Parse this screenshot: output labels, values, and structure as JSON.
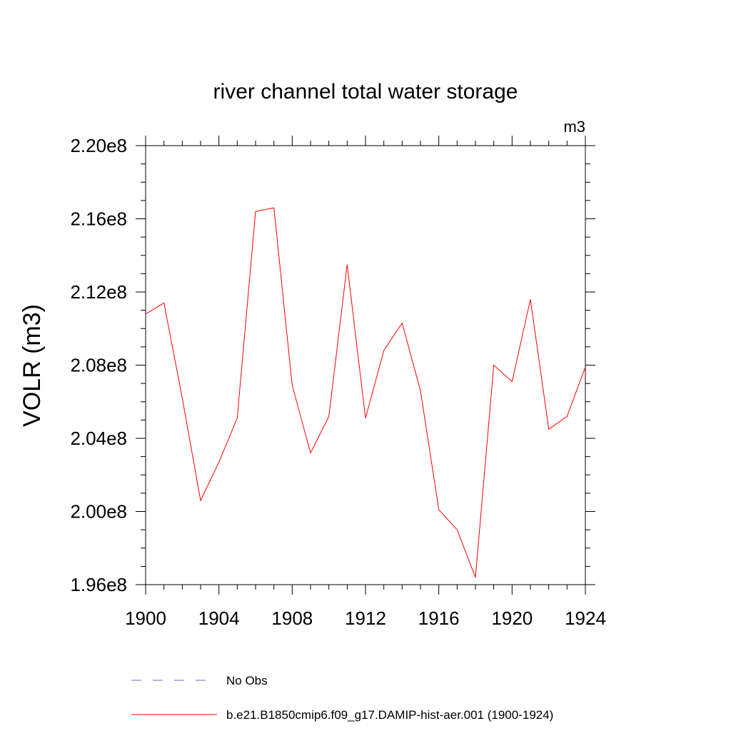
{
  "chart_data": {
    "type": "line",
    "title": "river channel total water storage",
    "units_label": "m3",
    "ylabel": "VOLR  (m3)",
    "xlabel": "",
    "xlim": [
      1900,
      1924
    ],
    "ylim": [
      196000000.0,
      220000000.0
    ],
    "x_ticks": [
      1900,
      1904,
      1908,
      1912,
      1916,
      1920,
      1924
    ],
    "x_tick_labels": [
      "1900",
      "1904",
      "1908",
      "1912",
      "1916",
      "1920",
      "1924"
    ],
    "y_ticks": [
      196000000.0,
      200000000.0,
      204000000.0,
      208000000.0,
      212000000.0,
      216000000.0,
      220000000.0
    ],
    "y_tick_labels": [
      "1.96e8",
      "2.00e8",
      "2.04e8",
      "2.08e8",
      "2.12e8",
      "2.16e8",
      "2.20e8"
    ],
    "x_minor_step": 1,
    "y_minor_step": 1000000.0,
    "grid": false,
    "legend_position": "bottom",
    "series": [
      {
        "name": "b.e21.B1850cmip6.f09_g17.DAMIP-hist-aer.001 (1900-1924)",
        "color": "#ff0000",
        "style": "solid",
        "x": [
          1900,
          1901,
          1902,
          1903,
          1904,
          1905,
          1906,
          1907,
          1908,
          1909,
          1910,
          1911,
          1912,
          1913,
          1914,
          1915,
          1916,
          1917,
          1918,
          1919,
          1920,
          1921,
          1922,
          1923,
          1924
        ],
        "values": [
          210800000.0,
          211400000.0,
          206200000.0,
          200600000.0,
          202700000.0,
          205100000.0,
          216400000.0,
          216600000.0,
          206900000.0,
          203200000.0,
          205200000.0,
          213500000.0,
          205100000.0,
          208800000.0,
          210300000.0,
          206600000.0,
          200100000.0,
          199000000.0,
          196400000.0,
          208000000.0,
          207100000.0,
          211600000.0,
          204500000.0,
          205200000.0,
          207900000.0
        ]
      }
    ],
    "legend": [
      {
        "label": "No Obs",
        "color": "#6b6bc7",
        "style": "dashed"
      },
      {
        "label": "b.e21.B1850cmip6.f09_g17.DAMIP-hist-aer.001 (1900-1924)",
        "color": "#ff0000",
        "style": "solid"
      }
    ]
  }
}
